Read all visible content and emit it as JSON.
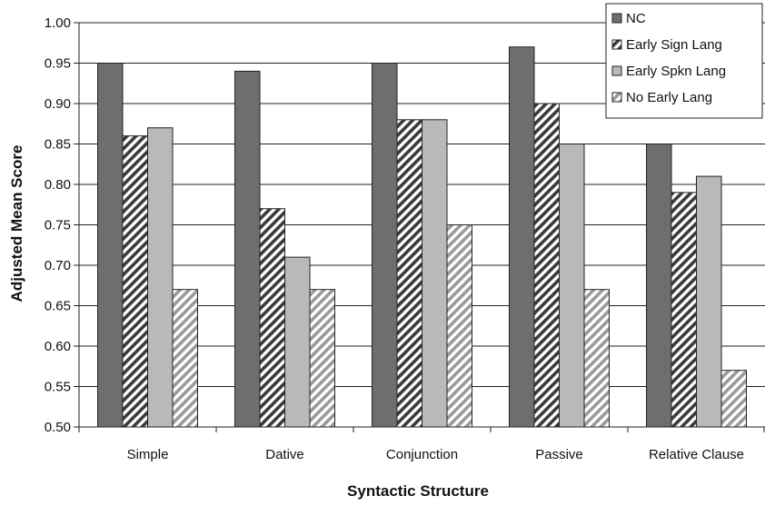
{
  "chart_data": {
    "type": "bar",
    "title": "",
    "xlabel": "Syntactic Structure",
    "ylabel": "Adjusted Mean  Score",
    "categories": [
      "Simple",
      "Dative",
      "Conjunction",
      "Passive",
      "Relative Clause"
    ],
    "series": [
      {
        "name": "NC",
        "values": [
          0.95,
          0.94,
          0.95,
          0.97,
          0.85
        ]
      },
      {
        "name": "Early Sign Lang",
        "values": [
          0.86,
          0.77,
          0.88,
          0.9,
          0.79
        ]
      },
      {
        "name": "Early Spkn Lang",
        "values": [
          0.87,
          0.71,
          0.88,
          0.85,
          0.81
        ]
      },
      {
        "name": "No Early Lang",
        "values": [
          0.67,
          0.67,
          0.75,
          0.67,
          0.57
        ]
      }
    ],
    "ylim": [
      0.5,
      1.0
    ],
    "yticks": [
      "0.50",
      "0.55",
      "0.60",
      "0.65",
      "0.70",
      "0.75",
      "0.80",
      "0.85",
      "0.90",
      "0.95",
      "1.00"
    ],
    "grid": true,
    "legend_position": "top-right",
    "colors": [
      "#6e6e6e",
      "#3a3a3a",
      "#b9b9b9",
      "#9a9a9a"
    ],
    "fills": [
      "solid",
      "hatch-dark",
      "solid",
      "hatch-light"
    ]
  }
}
